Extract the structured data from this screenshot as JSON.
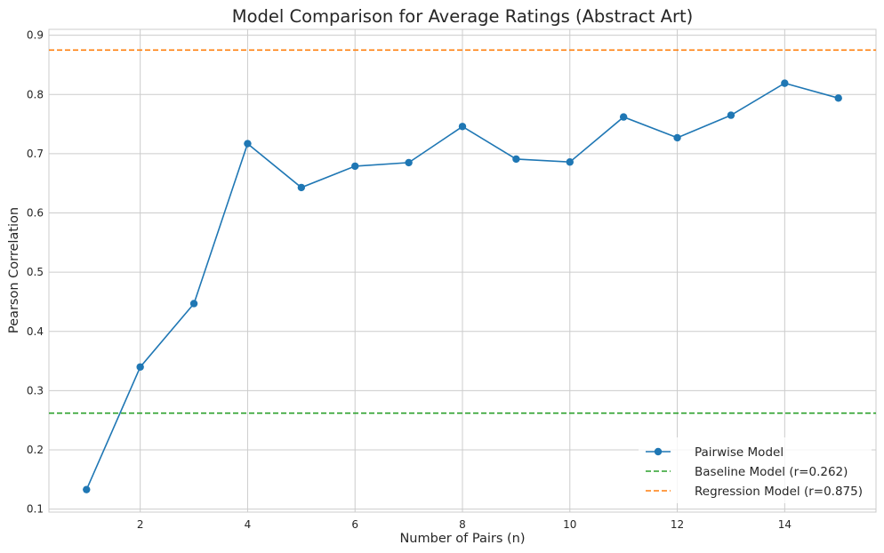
{
  "chart_data": {
    "type": "line",
    "title": "Model Comparison for Average Ratings (Abstract Art)",
    "xlabel": "Number of Pairs (n)",
    "ylabel": "Pearson Correlation",
    "xlim": [
      0.3,
      15.7
    ],
    "ylim": [
      0.095,
      0.91
    ],
    "xticks": [
      2,
      4,
      6,
      8,
      10,
      12,
      14
    ],
    "yticks": [
      0.1,
      0.2,
      0.3,
      0.4,
      0.5,
      0.6,
      0.7,
      0.8,
      0.9
    ],
    "grid": true,
    "legend_position": "lower-right",
    "series": [
      {
        "name": "Pairwise Model",
        "color": "#1f77b4",
        "style": "line-with-markers",
        "x": [
          1,
          2,
          3,
          4,
          5,
          6,
          7,
          8,
          9,
          10,
          11,
          12,
          13,
          14,
          15
        ],
        "values": [
          0.133,
          0.34,
          0.447,
          0.717,
          0.643,
          0.679,
          0.685,
          0.746,
          0.691,
          0.686,
          0.762,
          0.727,
          0.765,
          0.819,
          0.794
        ]
      }
    ],
    "reference_lines": [
      {
        "name": "Baseline Model (r=0.262)",
        "value": 0.262,
        "color": "#2ca02c",
        "style": "dashed"
      },
      {
        "name": "Regression Model (r=0.875)",
        "value": 0.875,
        "color": "#ff7f0e",
        "style": "dashed"
      }
    ]
  }
}
